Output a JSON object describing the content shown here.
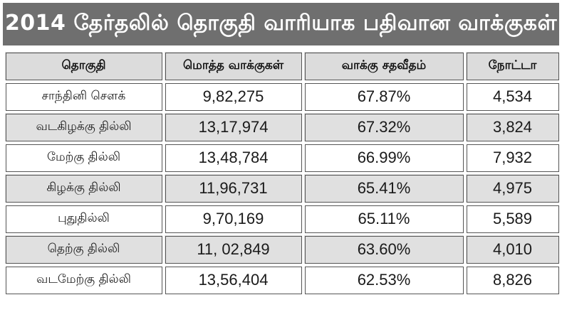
{
  "title": "2014 தேர்தலில் தொகுதி வாரியாக பதிவான வாக்குகள்",
  "chart_data": {
    "type": "table",
    "title": "2014 தேர்தலில் தொகுதி வாரியாக பதிவான வாக்குகள்",
    "columns": [
      "தொகுதி",
      "மொத்த வாக்குகள்",
      "வாக்கு சதவீதம்",
      "நோட்டா"
    ],
    "rows": [
      [
        "சாந்தினி சௌக்",
        "9,82,275",
        "67.87%",
        "4,534"
      ],
      [
        "வடகிழக்கு தில்லி",
        "13,17,974",
        "67.32%",
        "3,824"
      ],
      [
        "மேற்கு தில்லி",
        "13,48,784",
        "66.99%",
        "7,932"
      ],
      [
        "கிழக்கு தில்லி",
        "11,96,731",
        "65.41%",
        "4,975"
      ],
      [
        "புதுதில்லி",
        "9,70,169",
        "65.11%",
        "5,589"
      ],
      [
        "தெற்கு தில்லி",
        "11, 02,849",
        "63.60%",
        "4,010"
      ],
      [
        "வடமேற்கு தில்லி",
        "13,56,404",
        "62.53%",
        "8,826"
      ]
    ]
  }
}
